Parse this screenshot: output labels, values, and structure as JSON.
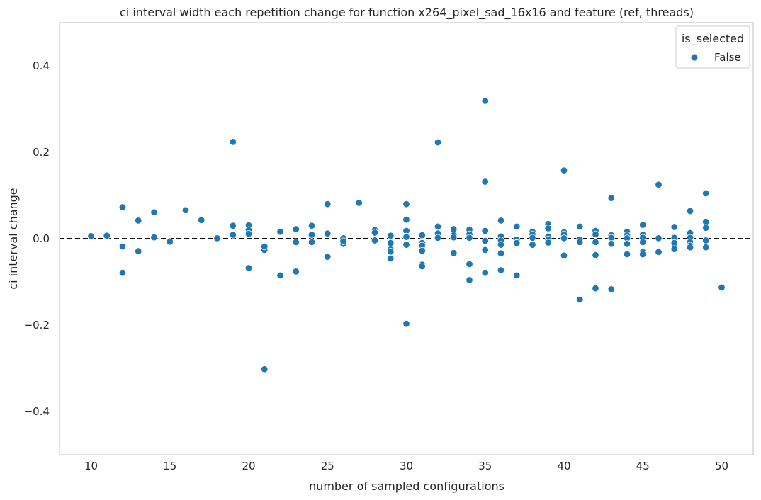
{
  "chart_data": {
    "type": "scatter",
    "title": "ci interval width each repetition change for function x264_pixel_sad_16x16 and feature (ref, threads)",
    "xlabel": "number of sampled configurations",
    "ylabel": "ci interval change",
    "xlim": [
      8,
      52
    ],
    "ylim": [
      -0.5,
      0.5
    ],
    "xticks": [
      10,
      15,
      20,
      25,
      30,
      35,
      40,
      45,
      50
    ],
    "yticks": [
      -0.4,
      -0.2,
      0.0,
      0.2,
      0.4
    ],
    "ytick_labels": [
      "−0.4",
      "−0.2",
      "0.0",
      "0.2",
      "0.4"
    ],
    "grid": false,
    "reference_line": {
      "y": 0.0,
      "style": "dashed",
      "color": "#000000"
    },
    "legend": {
      "title": "is_selected",
      "placement": "top-right",
      "entries": [
        "False"
      ]
    },
    "colors": {
      "series": "#1f77b4"
    },
    "series": [
      {
        "name": "False",
        "x": [
          10,
          11,
          12,
          12,
          12,
          13,
          13,
          14,
          14,
          15,
          16,
          17,
          18,
          19,
          19,
          19,
          19,
          20,
          20,
          20,
          20,
          21,
          21,
          21,
          21,
          22,
          22,
          23,
          23,
          23,
          24,
          24,
          24,
          24,
          25,
          25,
          25,
          26,
          26,
          26,
          27,
          28,
          28,
          28,
          29,
          29,
          29,
          29,
          29,
          30,
          30,
          30,
          30,
          30,
          30,
          30,
          31,
          31,
          31,
          31,
          31,
          31,
          32,
          32,
          32,
          32,
          33,
          33,
          33,
          33,
          34,
          34,
          34,
          34,
          34,
          34,
          35,
          35,
          35,
          35,
          35,
          35,
          36,
          36,
          36,
          36,
          36,
          36,
          37,
          37,
          37,
          37,
          38,
          38,
          38,
          38,
          39,
          39,
          39,
          39,
          39,
          40,
          40,
          40,
          40,
          40,
          41,
          41,
          41,
          41,
          42,
          42,
          42,
          42,
          42,
          43,
          43,
          43,
          43,
          43,
          44,
          44,
          44,
          44,
          44,
          45,
          45,
          45,
          45,
          45,
          45,
          46,
          46,
          46,
          47,
          47,
          47,
          47,
          48,
          48,
          48,
          48,
          48,
          48,
          49,
          49,
          49,
          49,
          49,
          50
        ],
        "y": [
          0.006,
          0.007,
          0.073,
          -0.018,
          -0.079,
          0.042,
          -0.029,
          0.061,
          0.003,
          -0.007,
          0.066,
          0.043,
          0.001,
          0.224,
          0.03,
          0.01,
          0.009,
          0.031,
          0.02,
          0.011,
          -0.068,
          -0.017,
          -0.026,
          -0.302,
          -0.018,
          0.016,
          -0.085,
          0.022,
          -0.008,
          -0.076,
          0.03,
          0.009,
          -0.008,
          0.03,
          0.08,
          0.012,
          -0.042,
          0.001,
          -0.012,
          -0.006,
          0.083,
          0.02,
          0.014,
          -0.004,
          0.007,
          -0.01,
          -0.025,
          -0.03,
          -0.046,
          0.08,
          0.044,
          0.018,
          0.005,
          -0.014,
          -0.197,
          0.004,
          0.008,
          -0.01,
          -0.016,
          -0.028,
          -0.06,
          -0.064,
          0.223,
          0.028,
          0.012,
          0.002,
          0.022,
          0.008,
          0.003,
          -0.033,
          0.021,
          0.01,
          0.001,
          0.002,
          -0.059,
          -0.096,
          0.319,
          0.132,
          0.018,
          -0.005,
          -0.026,
          -0.079,
          0.042,
          0.005,
          -0.004,
          -0.014,
          -0.034,
          -0.073,
          0.028,
          -0.002,
          -0.01,
          -0.085,
          0.016,
          0.01,
          0.002,
          -0.014,
          0.034,
          0.024,
          0.005,
          -0.002,
          -0.009,
          0.158,
          0.015,
          0.01,
          0.001,
          -0.039,
          0.028,
          -0.002,
          -0.008,
          -0.141,
          0.018,
          0.01,
          -0.008,
          -0.038,
          -0.115,
          0.094,
          0.008,
          0.002,
          -0.012,
          -0.117,
          0.016,
          0.008,
          0.001,
          -0.012,
          -0.036,
          0.032,
          0.009,
          0.002,
          -0.008,
          -0.031,
          -0.036,
          0.125,
          0.001,
          -0.031,
          0.027,
          0.002,
          -0.01,
          -0.024,
          0.064,
          0.013,
          0.002,
          -0.008,
          -0.016,
          -0.02,
          0.105,
          0.039,
          0.025,
          -0.004,
          -0.02,
          -0.113
        ]
      }
    ]
  }
}
